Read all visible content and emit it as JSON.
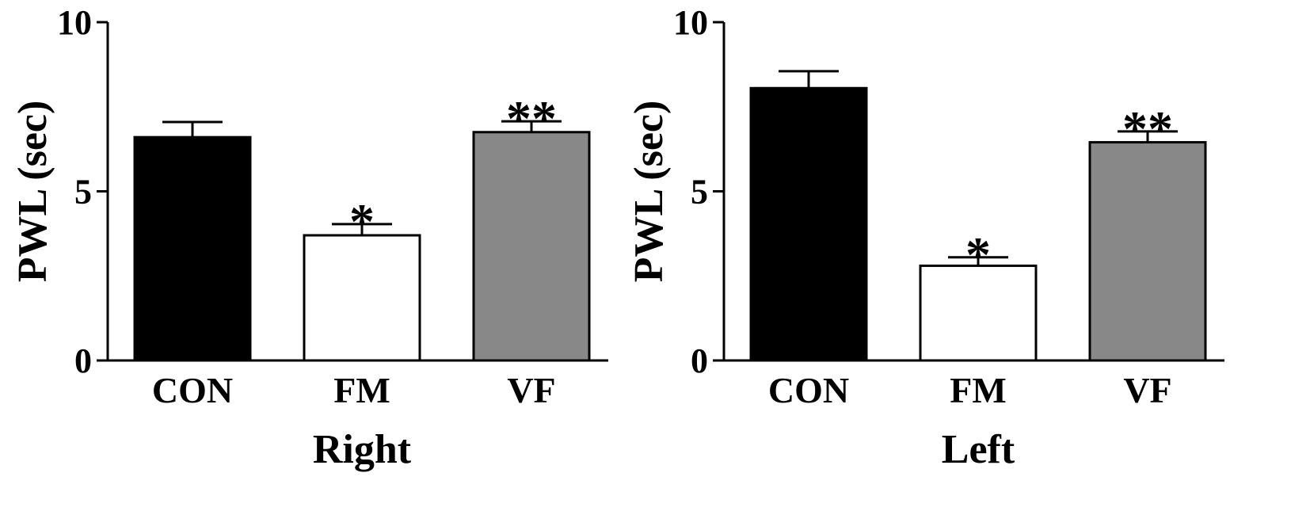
{
  "chart_data": [
    {
      "type": "bar",
      "title": "",
      "xlabel": "Right",
      "ylabel": "PWL (sec)",
      "ylim": [
        0,
        10
      ],
      "yticks": [
        0,
        5,
        10
      ],
      "categories": [
        "CON",
        "FM",
        "VF"
      ],
      "values": [
        6.6,
        3.7,
        6.75
      ],
      "errors": [
        0.45,
        0.33,
        0.32
      ],
      "significance": [
        "",
        "*",
        "**"
      ],
      "bar_colors": [
        "#000000",
        "#ffffff",
        "#888888"
      ],
      "grid": false
    },
    {
      "type": "bar",
      "title": "",
      "xlabel": "Left",
      "ylabel": "PWL (sec)",
      "ylim": [
        0,
        10
      ],
      "yticks": [
        0,
        5,
        10
      ],
      "categories": [
        "CON",
        "FM",
        "VF"
      ],
      "values": [
        8.05,
        2.8,
        6.45
      ],
      "errors": [
        0.5,
        0.25,
        0.32
      ],
      "significance": [
        "",
        "*",
        "**"
      ],
      "bar_colors": [
        "#000000",
        "#ffffff",
        "#888888"
      ],
      "grid": false
    }
  ]
}
